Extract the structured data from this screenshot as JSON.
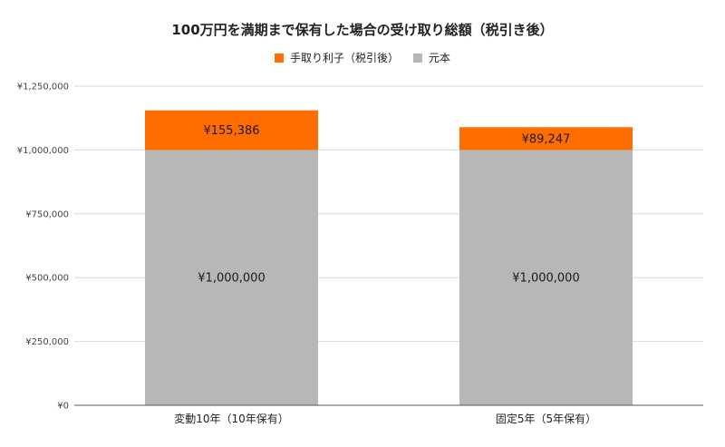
{
  "chart_data": {
    "type": "bar",
    "stacked": true,
    "title": "100万円を満期まで保有した場合の受け取り総額（税引き後）",
    "xlabel": "",
    "ylabel": "",
    "categories": [
      "変動10年（10年保有）",
      "固定5年（5年保有）"
    ],
    "ylim": [
      0,
      1250000
    ],
    "yticks": [
      0,
      250000,
      500000,
      750000,
      1000000,
      1250000
    ],
    "ytick_labels": [
      "¥0",
      "¥250,000",
      "¥500,000",
      "¥750,000",
      "¥1,000,000",
      "¥1,250,000"
    ],
    "grid": true,
    "legend_position": "top-center",
    "legend_order": [
      1,
      0
    ],
    "series": [
      {
        "name": "元本",
        "color": "#b7b7b7",
        "values": [
          1000000,
          1000000
        ],
        "data_labels": [
          "¥1,000,000",
          "¥1,000,000"
        ]
      },
      {
        "name": "手取り利子（税引後）",
        "color": "#ff6d01",
        "values": [
          155386,
          89247
        ],
        "data_labels": [
          "¥155,386",
          "¥89,247"
        ]
      }
    ]
  }
}
